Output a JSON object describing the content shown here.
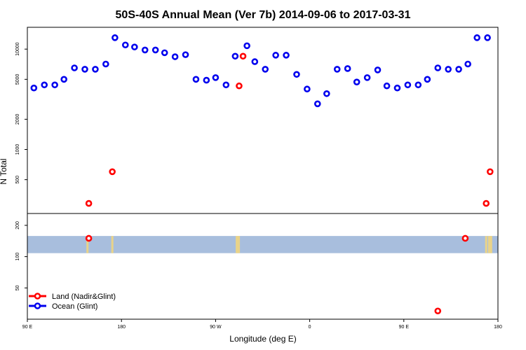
{
  "chart_data": {
    "type": "scatter",
    "title": "50S-40S Annual Mean (Ver 7b)   2014-09-06 to 2017-03-31",
    "xlabel": "Longitude (deg E)",
    "ylabel": "N Total",
    "xlim": [
      90,
      450
    ],
    "x_tick_values": [
      90,
      162,
      234,
      306,
      378,
      450
    ],
    "x_tick_labels": [
      "90 E",
      "180",
      "90 W",
      "0",
      "90 E",
      "180"
    ],
    "upper_panel": {
      "scale": "log",
      "ylim": [
        230,
        16500
      ],
      "y_tick_values": [
        500,
        1000,
        2000,
        5000,
        10000
      ],
      "y_tick_labels": [
        "500",
        "1000",
        "2000",
        "5000",
        "10000"
      ]
    },
    "lower_panel": {
      "scale": "log",
      "ylim": [
        25,
        260
      ],
      "y_tick_values": [
        50,
        100,
        200
      ],
      "y_tick_labels": [
        "50",
        "100",
        "200"
      ],
      "band": {
        "ymin": 108,
        "ymax": 158,
        "color": "#a8bedd"
      }
    },
    "land_color_patch": "#f5d77a",
    "series": [
      {
        "name": "Land (Nadir&Glint)",
        "color": "#ff0000",
        "x": [
          137,
          155,
          255,
          252,
          441,
          444,
          137,
          404,
          425
        ],
        "values": [
          290,
          600,
          8500,
          4300,
          290,
          600,
          150,
          30,
          150
        ],
        "panel": [
          "upper",
          "upper",
          "upper",
          "upper",
          "upper",
          "upper",
          "lower",
          "lower",
          "lower"
        ]
      },
      {
        "name": "Ocean (Glint)",
        "color": "#0000ee",
        "x": [
          95,
          103,
          111,
          118,
          126,
          134,
          142,
          150,
          157,
          165,
          172,
          180,
          188,
          195,
          203,
          211,
          219,
          227,
          234,
          242,
          249,
          258,
          264,
          272,
          280,
          288,
          296,
          304,
          312,
          319,
          327,
          335,
          342,
          350,
          358,
          365,
          373,
          381,
          389,
          396,
          404,
          412,
          420,
          427,
          434,
          442
        ],
        "values": [
          4100,
          4400,
          4400,
          5000,
          6500,
          6300,
          6300,
          7100,
          13000,
          11000,
          10500,
          9800,
          9800,
          9200,
          8400,
          8800,
          5000,
          4900,
          5200,
          4400,
          8500,
          10800,
          7500,
          6300,
          8700,
          8700,
          5600,
          4000,
          2850,
          3600,
          6300,
          6400,
          4700,
          5200,
          6200,
          4300,
          4100,
          4400,
          4400,
          5000,
          6500,
          6300,
          6300,
          7100,
          13000,
          13000
        ],
        "panel": "upper"
      }
    ],
    "legend": {
      "position": "bottom-left",
      "entries": [
        "Land (Nadir&Glint)",
        "Ocean (Glint)"
      ]
    }
  }
}
